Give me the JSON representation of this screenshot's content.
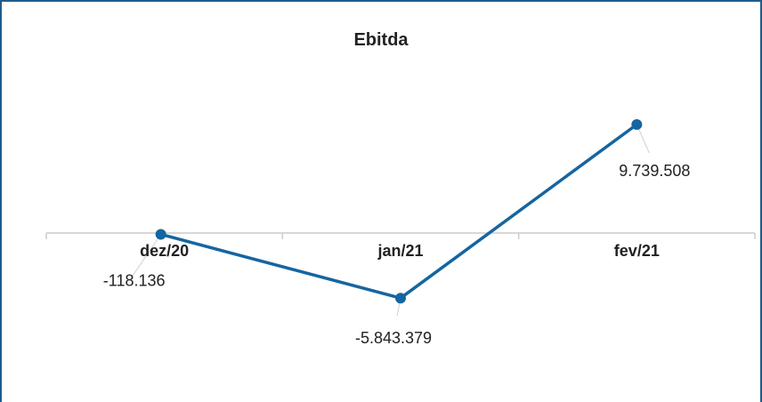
{
  "chart_data": {
    "type": "line",
    "title": "Ebitda",
    "categories": [
      "dez/20",
      "jan/21",
      "fev/21"
    ],
    "series": [
      {
        "values": [
          -118136,
          -5843379,
          9739508
        ],
        "labels": [
          "-118.136",
          "-5.843.379",
          "9.739.508"
        ]
      }
    ],
    "ylim": [
      -10000000,
      12000000
    ],
    "grid": false,
    "legend": "none"
  },
  "colors": {
    "line": "#1565a0",
    "axis": "#cccccc",
    "frame": "#1f5c8b"
  }
}
